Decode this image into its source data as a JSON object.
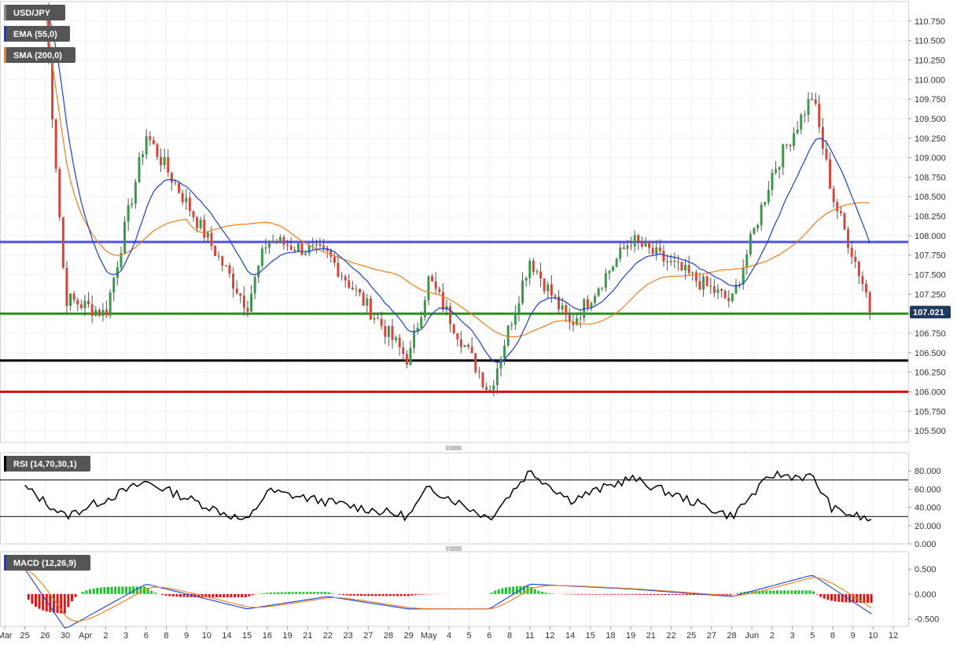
{
  "chart_data": [
    {
      "type": "candlestick",
      "symbol": "USD/JPY",
      "indicators": [
        {
          "name": "EMA (55,0)",
          "color": "#1a3fd8"
        },
        {
          "name": "SMA (200,0)",
          "color": "#f07d1a"
        }
      ],
      "last_price": "107.021",
      "ylim": [
        105.35,
        111.0
      ],
      "y_ticks": [
        "105.500",
        "105.750",
        "106.000",
        "106.250",
        "106.500",
        "106.750",
        "107.000",
        "107.250",
        "107.500",
        "107.750",
        "108.000",
        "108.250",
        "108.500",
        "108.750",
        "109.000",
        "109.250",
        "109.500",
        "109.750",
        "110.000",
        "110.250",
        "110.500",
        "110.750"
      ],
      "horizontal_levels": [
        {
          "value": 107.92,
          "color": "#4f4ff0"
        },
        {
          "value": 107.0,
          "color": "#2e8b1e"
        },
        {
          "value": 106.4,
          "color": "#000000"
        },
        {
          "value": 106.0,
          "color": "#e01010"
        }
      ],
      "x_ticks": [
        "Mar",
        "25",
        "26",
        "30",
        "Apr",
        "2",
        "3",
        "6",
        "8",
        "9",
        "10",
        "14",
        "15",
        "16",
        "19",
        "21",
        "22",
        "23",
        "27",
        "28",
        "29",
        "May",
        "4",
        "5",
        "6",
        "8",
        "11",
        "12",
        "14",
        "15",
        "18",
        "19",
        "21",
        "22",
        "25",
        "27",
        "28",
        "Jun",
        "2",
        "3",
        "5",
        "8",
        "9",
        "10",
        "12"
      ],
      "key_points": [
        {
          "x": "Mar 26",
          "y": 110.9
        },
        {
          "x": "Mar 30",
          "y": 107.2
        },
        {
          "x": "Apr 2",
          "y": 107.0
        },
        {
          "x": "Apr 6",
          "y": 109.3
        },
        {
          "x": "Apr 15",
          "y": 107.1
        },
        {
          "x": "Apr 16",
          "y": 107.95
        },
        {
          "x": "Apr 22",
          "y": 107.75
        },
        {
          "x": "Apr 29",
          "y": 106.4
        },
        {
          "x": "May 1",
          "y": 107.45
        },
        {
          "x": "May 6",
          "y": 106.0
        },
        {
          "x": "May 11",
          "y": 107.7
        },
        {
          "x": "May 14",
          "y": 106.85
        },
        {
          "x": "May 19",
          "y": 107.95
        },
        {
          "x": "May 28",
          "y": 107.15
        },
        {
          "x": "Jun 2",
          "y": 108.8
        },
        {
          "x": "Jun 5",
          "y": 109.8
        },
        {
          "x": "Jun 8",
          "y": 108.5
        },
        {
          "x": "Jun 10",
          "y": 107.02
        }
      ]
    },
    {
      "type": "line",
      "title": "RSI (14,70,30,1)",
      "ylim": [
        0,
        100
      ],
      "y_ticks": [
        "80.000",
        "60.000",
        "40.000",
        "20.000",
        "0.000"
      ],
      "levels": [
        70,
        30
      ],
      "key_points": [
        {
          "x": "Mar 25",
          "y": 62
        },
        {
          "x": "Mar 30",
          "y": 30
        },
        {
          "x": "Apr 6",
          "y": 68
        },
        {
          "x": "Apr 15",
          "y": 24
        },
        {
          "x": "Apr 16",
          "y": 58
        },
        {
          "x": "Apr 29",
          "y": 30
        },
        {
          "x": "May 1",
          "y": 62
        },
        {
          "x": "May 6",
          "y": 28
        },
        {
          "x": "May 11",
          "y": 80
        },
        {
          "x": "May 14",
          "y": 48
        },
        {
          "x": "May 19",
          "y": 72
        },
        {
          "x": "May 28",
          "y": 30
        },
        {
          "x": "Jun 2",
          "y": 76
        },
        {
          "x": "Jun 5",
          "y": 73
        },
        {
          "x": "Jun 8",
          "y": 38
        },
        {
          "x": "Jun 10",
          "y": 25
        }
      ]
    },
    {
      "type": "line",
      "title": "MACD (12,26,9)",
      "ylim": [
        -0.65,
        0.85
      ],
      "y_ticks": [
        "0.500",
        "0.000",
        "-0.500"
      ],
      "key_points": [
        {
          "x": "Mar 25",
          "y": 0.5
        },
        {
          "x": "Mar 30",
          "y": -0.7
        },
        {
          "x": "Apr 6",
          "y": 0.2
        },
        {
          "x": "Apr 15",
          "y": -0.3
        },
        {
          "x": "Apr 22",
          "y": -0.05
        },
        {
          "x": "Apr 29",
          "y": -0.3
        },
        {
          "x": "May 6",
          "y": -0.3
        },
        {
          "x": "May 11",
          "y": 0.2
        },
        {
          "x": "May 19",
          "y": 0.1
        },
        {
          "x": "May 28",
          "y": -0.05
        },
        {
          "x": "Jun 5",
          "y": 0.38
        },
        {
          "x": "Jun 10",
          "y": -0.42
        }
      ]
    }
  ]
}
